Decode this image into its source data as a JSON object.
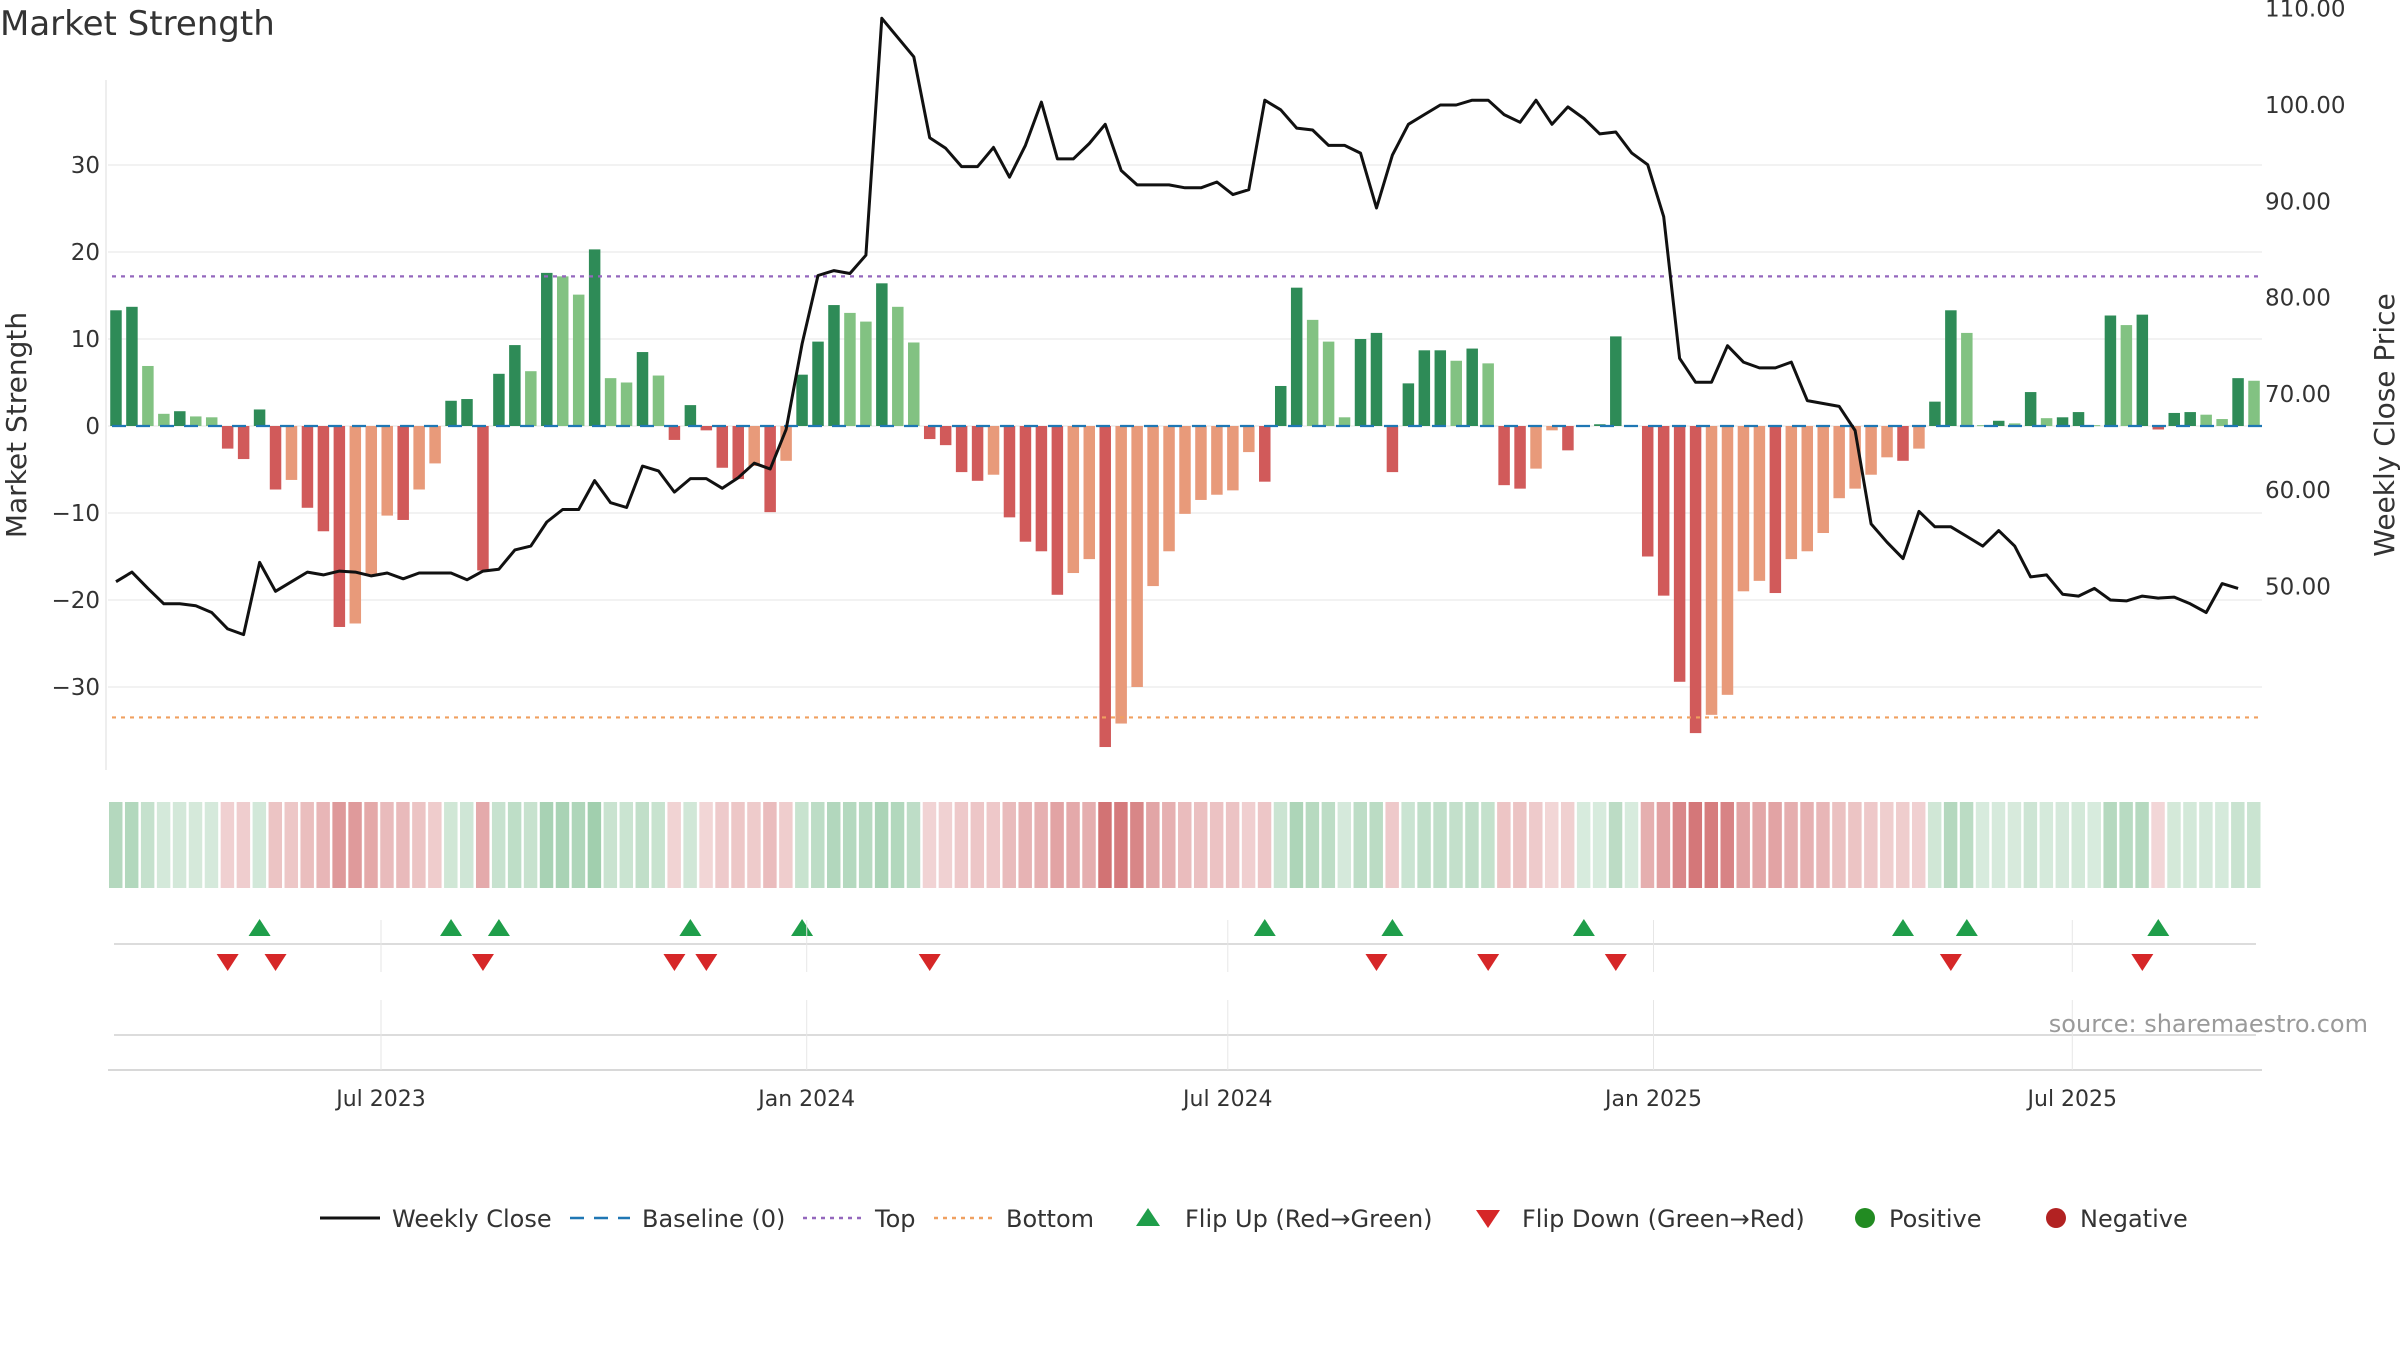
{
  "title": "Market Strength",
  "source": "source: sharemaestro.com",
  "chart_data": {
    "type": "bar",
    "title": "Market Strength",
    "ylabel_left": "Market Strength",
    "ylabel_right": "Weekly Close Price",
    "ylim_left": [
      -40,
      40
    ],
    "ylim_right": [
      40,
      112
    ],
    "yticks_left": [
      -30,
      -20,
      -10,
      0,
      10,
      20,
      30
    ],
    "yticks_left_labels": [
      "−30",
      "−20",
      "−10",
      "0",
      "10",
      "20",
      "30"
    ],
    "yticks_right": [
      50,
      60,
      70,
      80,
      90,
      100,
      110
    ],
    "yticks_right_labels": [
      "50.00",
      "60.00",
      "70.00",
      "80.00",
      "90.00",
      "100.00",
      "110.00"
    ],
    "x_start": "2023-03-05",
    "x_end": "2025-09-21",
    "xticks": [
      {
        "date": "2023-07-01",
        "label": "Jul 2023"
      },
      {
        "date": "2024-01-01",
        "label": "Jan 2024"
      },
      {
        "date": "2024-07-01",
        "label": "Jul 2024"
      },
      {
        "date": "2025-01-01",
        "label": "Jan 2025"
      },
      {
        "date": "2025-07-01",
        "label": "Jul 2025"
      }
    ],
    "grid": true,
    "top_line": 17.2,
    "bottom_line": -33.5,
    "strength": [
      13.3,
      13.7,
      6.9,
      1.4,
      1.7,
      1.1,
      1.0,
      -2.6,
      -3.8,
      1.9,
      -7.3,
      -6.2,
      -9.4,
      -12.1,
      -23.1,
      -22.7,
      -17.2,
      -10.3,
      -10.8,
      -7.3,
      -4.3,
      2.9,
      3.1,
      -16.6,
      6.0,
      9.3,
      6.3,
      17.6,
      17.2,
      15.1,
      20.3,
      5.5,
      5.0,
      8.5,
      5.8,
      -1.6,
      2.4,
      -0.5,
      -4.8,
      -6.1,
      -4.6,
      -9.9,
      -4.0,
      5.9,
      9.7,
      13.9,
      13.0,
      12.0,
      16.4,
      13.7,
      9.6,
      -1.5,
      -2.2,
      -5.3,
      -6.3,
      -5.6,
      -10.5,
      -13.3,
      -14.4,
      -19.4,
      -16.9,
      -15.3,
      -36.9,
      -34.2,
      -30.0,
      -18.4,
      -14.4,
      -10.1,
      -8.5,
      -7.9,
      -7.4,
      -3.0,
      -6.4,
      4.6,
      15.9,
      12.2,
      9.7,
      1.0,
      10.0,
      10.7,
      -5.3,
      4.9,
      8.7,
      8.7,
      7.5,
      8.9,
      7.2,
      -6.8,
      -7.2,
      -4.9,
      -0.5,
      -2.8,
      0.1,
      0.2,
      10.3,
      0.1,
      -15.0,
      -19.5,
      -29.4,
      -35.3,
      -33.2,
      -30.9,
      -19.0,
      -17.8,
      -19.2,
      -15.3,
      -14.4,
      -12.3,
      -8.3,
      -7.2,
      -5.6,
      -3.6,
      -4.0,
      -2.6,
      2.8,
      13.3,
      10.7,
      0.1,
      0.6,
      0.3,
      3.9,
      0.9,
      1.0,
      1.6,
      0.1,
      12.7,
      11.6,
      12.8,
      -0.4,
      1.5,
      1.6,
      1.3,
      0.8,
      5.5,
      5.2
    ],
    "weekly_close": [
      50.5,
      51.5,
      49.8,
      48.2,
      48.2,
      48.0,
      47.3,
      45.6,
      45.0,
      52.5,
      49.5,
      50.5,
      51.5,
      51.2,
      51.6,
      51.5,
      51.1,
      51.4,
      50.8,
      51.4,
      51.4,
      51.4,
      50.7,
      51.6,
      51.8,
      53.8,
      54.2,
      56.7,
      58.0,
      58.0,
      61.0,
      58.7,
      58.2,
      62.5,
      62.0,
      59.8,
      61.2,
      61.2,
      60.2,
      61.3,
      62.8,
      62.2,
      66.3,
      75.2,
      82.3,
      82.8,
      82.5,
      84.4,
      109.0,
      107.0,
      105.0,
      96.6,
      95.5,
      93.6,
      93.6,
      95.6,
      92.5,
      95.8,
      100.3,
      94.4,
      94.4,
      96.0,
      98.0,
      93.2,
      91.7,
      91.7,
      91.7,
      91.4,
      91.4,
      92.0,
      90.7,
      91.2,
      100.5,
      99.5,
      97.6,
      97.4,
      95.8,
      95.8,
      95.0,
      89.3,
      94.8,
      98.0,
      99.0,
      100.0,
      100.0,
      100.5,
      100.5,
      99.0,
      98.2,
      100.5,
      98.0,
      99.8,
      98.6,
      97.0,
      97.2,
      95.0,
      93.8,
      88.4,
      73.7,
      71.2,
      71.2,
      75.0,
      73.3,
      72.7,
      72.7,
      73.3,
      69.3,
      69.0,
      68.7,
      66.2,
      56.5,
      54.6,
      52.9,
      57.8,
      56.2,
      56.2,
      55.2,
      54.2,
      55.8,
      54.2,
      51.0,
      51.2,
      49.2,
      49.0,
      49.8,
      48.6,
      48.5,
      49.0,
      48.8,
      48.9,
      48.2,
      47.3,
      50.3,
      49.8
    ],
    "heat_strip": "weekly market strength, green = positive, red = negative, darker = stronger",
    "flip_up_week_index": [
      9,
      21,
      24,
      36,
      43,
      72,
      80,
      92,
      112,
      116,
      128
    ],
    "flip_down_week_index": [
      7,
      10,
      23,
      35,
      37,
      51,
      79,
      86,
      94,
      115,
      127
    ],
    "legend": [
      {
        "label": "Weekly Close",
        "icon": "solid-line",
        "color": "#111111"
      },
      {
        "label": "Baseline (0)",
        "icon": "dashed-line",
        "color": "#1f77b4"
      },
      {
        "label": "Top",
        "icon": "dotted-line",
        "color": "#9467bd"
      },
      {
        "label": "Bottom",
        "icon": "dotted-line",
        "color": "#f0a060"
      },
      {
        "label": "Flip Up (Red→Green)",
        "icon": "triangle-up",
        "color": "#1f9e4a"
      },
      {
        "label": "Flip Down (Green→Red)",
        "icon": "triangle-down",
        "color": "#d62728"
      },
      {
        "label": "Positive",
        "icon": "circle",
        "color": "#228b22"
      },
      {
        "label": "Negative",
        "icon": "circle",
        "color": "#b22222"
      }
    ],
    "legend_placement": "bottom-center"
  },
  "colors": {
    "strong_green": "#2e8b57",
    "light_green": "#82c282",
    "strong_red": "#d15a5a",
    "light_red": "#e89a7a",
    "price_line": "#111111",
    "baseline": "#1f77b4",
    "top_line": "#9467bd",
    "bottom_line": "#f0a060",
    "flip_up": "#1f9e4a",
    "flip_down": "#d62728",
    "grid": "#e6e6e6",
    "text": "#333333"
  }
}
